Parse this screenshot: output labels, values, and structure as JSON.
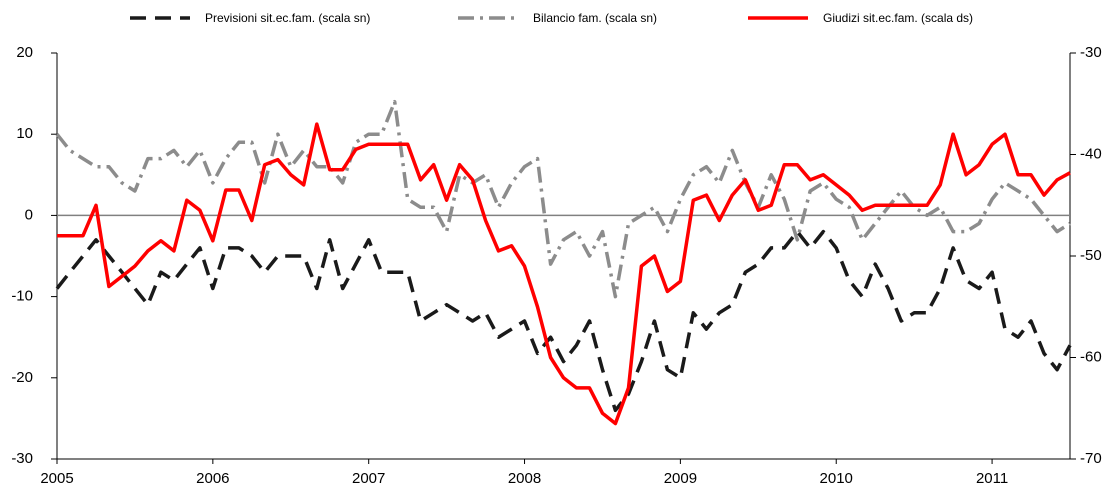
{
  "chart_data": {
    "type": "line",
    "x": [
      2005,
      2005.083,
      2005.167,
      2005.25,
      2005.333,
      2005.417,
      2005.5,
      2005.583,
      2005.667,
      2005.75,
      2005.833,
      2005.917,
      2006,
      2006.083,
      2006.167,
      2006.25,
      2006.333,
      2006.417,
      2006.5,
      2006.583,
      2006.667,
      2006.75,
      2006.833,
      2006.917,
      2007,
      2007.083,
      2007.167,
      2007.25,
      2007.333,
      2007.417,
      2007.5,
      2007.583,
      2007.667,
      2007.75,
      2007.833,
      2007.917,
      2008,
      2008.083,
      2008.167,
      2008.25,
      2008.333,
      2008.417,
      2008.5,
      2008.583,
      2008.667,
      2008.75,
      2008.833,
      2008.917,
      2009,
      2009.083,
      2009.167,
      2009.25,
      2009.333,
      2009.417,
      2009.5,
      2009.583,
      2009.667,
      2009.75,
      2009.833,
      2009.917,
      2010,
      2010.083,
      2010.167,
      2010.25,
      2010.333,
      2010.417,
      2010.5,
      2010.583,
      2010.667,
      2010.75,
      2010.833,
      2010.917,
      2011,
      2011.083,
      2011.167,
      2011.25,
      2011.333,
      2011.417,
      2011.5
    ],
    "series": [
      {
        "name": "Previsioni sit.ec.fam. (scala sn)",
        "color": "#1a1a1a",
        "dash": "dashed",
        "values": [
          -9,
          -7,
          -5,
          -3,
          -5,
          -7,
          -9,
          -11,
          -7,
          -8,
          -6,
          -4,
          -9,
          -4,
          -4,
          -5,
          -7,
          -5,
          -5,
          -5,
          -9,
          -3,
          -9,
          -6,
          -3,
          -7,
          -7,
          -7,
          -13,
          -12,
          -11,
          -12,
          -13,
          -12,
          -15,
          -14,
          -13,
          -17,
          -15,
          -18,
          -16,
          -13,
          -19,
          -24,
          -22,
          -18,
          -13,
          -19,
          -20,
          -12,
          -14,
          -12,
          -11,
          -7,
          -6,
          -4,
          -4,
          -2,
          -4,
          -2,
          -4,
          -8,
          -10,
          -6,
          -9,
          -13,
          -12,
          -12,
          -9,
          -4,
          -8,
          -9,
          -7,
          -14,
          -15,
          -13,
          -17,
          -19,
          -16
        ]
      },
      {
        "name": "Bilancio fam. (scala sn)",
        "color": "#8c8c8c",
        "dash": "dashdot",
        "values": [
          10,
          8,
          7,
          6,
          6,
          4,
          3,
          7,
          7,
          8,
          6,
          8,
          4,
          7,
          9,
          9,
          4,
          10,
          6,
          8,
          6,
          6,
          4,
          9,
          10,
          10,
          14,
          2,
          1,
          1,
          -2,
          5,
          4,
          5,
          1,
          4,
          6,
          7,
          -6,
          -3,
          -2,
          -5,
          -2,
          -10,
          -1,
          0,
          1,
          -2,
          2,
          5,
          6,
          4,
          8,
          4,
          1,
          5,
          2,
          -3,
          3,
          4,
          2,
          1,
          -3,
          -1,
          1,
          3,
          1,
          0,
          1,
          -2,
          -2,
          -1,
          2,
          4,
          3,
          2,
          0,
          -2,
          -1
        ]
      },
      {
        "name": "Giudizi sit.ec.fam. (scala ds)",
        "color": "#ff0000",
        "dash": "solid",
        "axis": "y2",
        "values": [
          -48,
          -48,
          -48,
          -45,
          -53,
          -52,
          -51,
          -49.5,
          -48.5,
          -49.5,
          -44.5,
          -45.5,
          -48.5,
          -43.5,
          -43.5,
          -46.5,
          -41,
          -40.5,
          -42,
          -43,
          -37,
          -41.5,
          -41.5,
          -39.5,
          -39,
          -39,
          -39,
          -39,
          -42.5,
          -41,
          -44.5,
          -41,
          -42.5,
          -46.5,
          -49.5,
          -49,
          -51,
          -55,
          -60,
          -62,
          -63,
          -63,
          -65.5,
          -66.5,
          -63,
          -51,
          -50,
          -53.5,
          -52.5,
          -44.5,
          -44,
          -46.5,
          -44,
          -42.5,
          -45.5,
          -45,
          -41,
          -41,
          -42.5,
          -42,
          -43,
          -44,
          -45.5,
          -45,
          -45,
          -45,
          -45,
          -45,
          -43,
          -38,
          -42,
          -41,
          -39,
          -38,
          -42,
          -42,
          -44,
          -42.5,
          -41.8
        ]
      }
    ],
    "xlim": [
      2005,
      2011.5
    ],
    "xticks": [
      2005,
      2006,
      2007,
      2008,
      2009,
      2010,
      2011
    ],
    "ylim": [
      -30,
      20
    ],
    "yticks": [
      20,
      10,
      0,
      -10,
      -20,
      -30
    ],
    "y2lim": [
      -70,
      -30
    ],
    "y2ticks": [
      -30,
      -40,
      -50,
      -60,
      -70
    ],
    "zero_line": 0,
    "grid": false,
    "legend": "top"
  }
}
